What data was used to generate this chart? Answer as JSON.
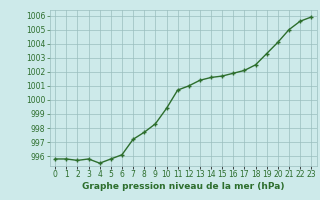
{
  "x": [
    0,
    1,
    2,
    3,
    4,
    5,
    6,
    7,
    8,
    9,
    10,
    11,
    12,
    13,
    14,
    15,
    16,
    17,
    18,
    19,
    20,
    21,
    22,
    23
  ],
  "y": [
    995.8,
    995.8,
    995.7,
    995.8,
    995.5,
    995.8,
    996.1,
    997.2,
    997.7,
    998.3,
    999.4,
    1000.7,
    1001.0,
    1001.4,
    1001.6,
    1001.7,
    1001.9,
    1002.1,
    1002.5,
    1003.3,
    1004.1,
    1005.0,
    1005.6,
    1005.9
  ],
  "line_color": "#2d6e2d",
  "marker": "+",
  "marker_size": 3,
  "line_width": 1.0,
  "bg_color": "#cdeaea",
  "grid_color": "#9abebe",
  "ylabel_ticks": [
    996,
    997,
    998,
    999,
    1000,
    1001,
    1002,
    1003,
    1004,
    1005,
    1006
  ],
  "ylim": [
    995.3,
    1006.4
  ],
  "xlim": [
    -0.5,
    23.5
  ],
  "xlabel": "Graphe pression niveau de la mer (hPa)",
  "tick_label_color": "#2d6e2d",
  "xlabel_color": "#2d6e2d",
  "xlabel_fontsize": 6.5,
  "tick_fontsize": 5.5
}
